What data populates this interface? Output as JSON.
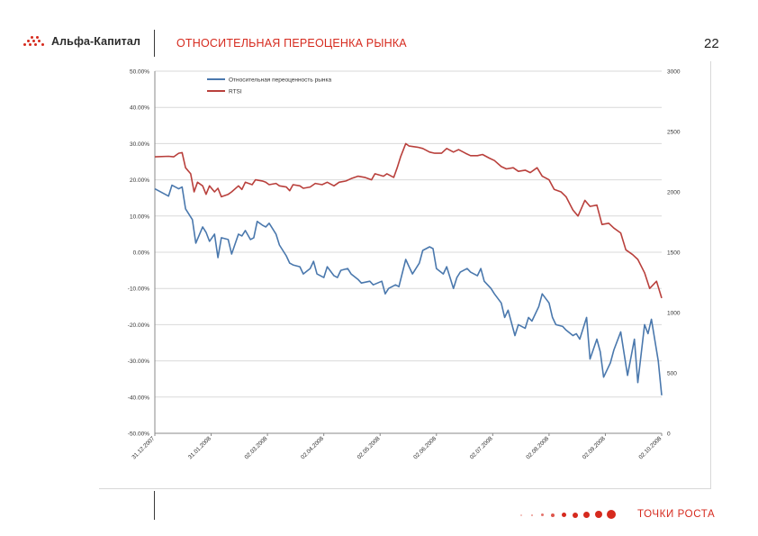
{
  "header": {
    "logo_text": "Альфа-Капитал",
    "title": "ОТНОСИТЕЛЬНАЯ ПЕРЕОЦЕНКА РЫНКА",
    "page_number": "22"
  },
  "footer": {
    "tagline": "ТОЧКИ РОСТА"
  },
  "colors": {
    "brand_red": "#d62a1e",
    "series_blue": "#4a78ad",
    "series_red": "#b9403c"
  },
  "chart_data": {
    "type": "line",
    "title": "",
    "legend_position": "top-center",
    "grid": "horizontal",
    "x_tick_labels": [
      "31.12.2007",
      "31.01.2008",
      "02.03.2008",
      "02.04.2008",
      "02.05.2008",
      "02.06.2008",
      "02.07.2008",
      "02.08.2008",
      "02.09.2008",
      "02.10.2008"
    ],
    "y_left": {
      "ylim": [
        -50,
        50
      ],
      "ticks": [
        50,
        40,
        30,
        20,
        10,
        0,
        -10,
        -20,
        -30,
        -40,
        -50
      ],
      "tick_labels": [
        "50.00%",
        "40.00%",
        "30.00%",
        "20.00%",
        "10.00%",
        "0.00%",
        "-10.00%",
        "-20.00%",
        "-30.00%",
        "-40.00%",
        "-50.00%"
      ]
    },
    "y_right": {
      "ylim": [
        0,
        3000
      ],
      "ticks": [
        3000,
        2500,
        2000,
        1500,
        1000,
        500,
        0
      ],
      "tick_labels": [
        "3000",
        "2500",
        "2000",
        "1500",
        "1000",
        "500",
        "0"
      ]
    },
    "series": [
      {
        "name": "Относительная переоценность рынка",
        "axis": "left",
        "color": "#4a78ad",
        "x": [
          "2007-12-31",
          "2008-01-08",
          "2008-01-10",
          "2008-01-14",
          "2008-01-16",
          "2008-01-18",
          "2008-01-22",
          "2008-01-24",
          "2008-01-28",
          "2008-01-30",
          "2008-02-01",
          "2008-02-04",
          "2008-02-06",
          "2008-02-08",
          "2008-02-12",
          "2008-02-14",
          "2008-02-18",
          "2008-02-20",
          "2008-02-22",
          "2008-02-25",
          "2008-02-27",
          "2008-02-29",
          "2008-03-03",
          "2008-03-05",
          "2008-03-07",
          "2008-03-11",
          "2008-03-13",
          "2008-03-17",
          "2008-03-19",
          "2008-03-21",
          "2008-03-25",
          "2008-03-27",
          "2008-03-31",
          "2008-04-02",
          "2008-04-04",
          "2008-04-08",
          "2008-04-10",
          "2008-04-14",
          "2008-04-16",
          "2008-04-18",
          "2008-04-22",
          "2008-04-24",
          "2008-04-28",
          "2008-04-30",
          "2008-05-05",
          "2008-05-07",
          "2008-05-12",
          "2008-05-14",
          "2008-05-16",
          "2008-05-20",
          "2008-05-22",
          "2008-05-26",
          "2008-05-28",
          "2008-05-30",
          "2008-06-03",
          "2008-06-05",
          "2008-06-09",
          "2008-06-11",
          "2008-06-13",
          "2008-06-17",
          "2008-06-19",
          "2008-06-23",
          "2008-06-25",
          "2008-06-27",
          "2008-07-01",
          "2008-07-03",
          "2008-07-07",
          "2008-07-09",
          "2008-07-11",
          "2008-07-15",
          "2008-07-17",
          "2008-07-21",
          "2008-07-23",
          "2008-07-25",
          "2008-07-29",
          "2008-07-31",
          "2008-08-04",
          "2008-08-06",
          "2008-08-08",
          "2008-08-12",
          "2008-08-14",
          "2008-08-18",
          "2008-08-20",
          "2008-08-22",
          "2008-08-26",
          "2008-08-28",
          "2008-09-01",
          "2008-09-03",
          "2008-09-05",
          "2008-09-09",
          "2008-09-11",
          "2008-09-15",
          "2008-09-17",
          "2008-09-19",
          "2008-09-23",
          "2008-09-25",
          "2008-09-29",
          "2008-10-01",
          "2008-10-03",
          "2008-10-07",
          "2008-10-09",
          "2008-10-13",
          "2008-10-15",
          "2008-10-17",
          "2008-10-21",
          "2008-10-23"
        ],
        "y": [
          17.5,
          15.5,
          18.5,
          17.5,
          18.0,
          12.0,
          9.0,
          2.5,
          7.0,
          5.5,
          3.0,
          5.0,
          -1.5,
          4.0,
          3.5,
          -0.5,
          5.0,
          4.5,
          6.0,
          3.5,
          4.0,
          8.5,
          7.5,
          7.0,
          8.0,
          5.0,
          2.0,
          -1.0,
          -3.0,
          -3.5,
          -4.0,
          -6.0,
          -4.5,
          -2.5,
          -6.0,
          -7.0,
          -4.0,
          -6.5,
          -7.0,
          -5.0,
          -4.5,
          -6.0,
          -7.5,
          -8.5,
          -8.0,
          -9.0,
          -8.0,
          -11.5,
          -10.0,
          -9.0,
          -9.5,
          -2.0,
          -4.0,
          -6.0,
          -3.0,
          0.5,
          1.5,
          1.0,
          -4.5,
          -6.0,
          -4.0,
          -10.0,
          -7.0,
          -5.5,
          -4.5,
          -5.5,
          -6.5,
          -4.5,
          -8.0,
          -10.0,
          -11.5,
          -14.0,
          -18.0,
          -16.0,
          -23.0,
          -20.0,
          -21.0,
          -18.0,
          -19.0,
          -15.0,
          -11.5,
          -14.0,
          -18.0,
          -20.0,
          -20.5,
          -21.5,
          -23.0,
          -22.5,
          -24.0,
          -18.0,
          -29.5,
          -24.0,
          -27.5,
          -34.5,
          -30.5,
          -27.0,
          -22.0,
          -28.0,
          -34.0,
          -24.0,
          -36.0,
          -20.0,
          -22.5,
          -18.5,
          -30.0,
          -39.5
        ]
      },
      {
        "name": "RTSI",
        "axis": "right",
        "color": "#b9403c",
        "x": [
          "2007-12-31",
          "2008-01-08",
          "2008-01-11",
          "2008-01-14",
          "2008-01-16",
          "2008-01-18",
          "2008-01-21",
          "2008-01-23",
          "2008-01-25",
          "2008-01-28",
          "2008-01-30",
          "2008-02-01",
          "2008-02-04",
          "2008-02-06",
          "2008-02-08",
          "2008-02-12",
          "2008-02-14",
          "2008-02-18",
          "2008-02-20",
          "2008-02-22",
          "2008-02-26",
          "2008-02-28",
          "2008-03-03",
          "2008-03-05",
          "2008-03-07",
          "2008-03-11",
          "2008-03-13",
          "2008-03-17",
          "2008-03-19",
          "2008-03-21",
          "2008-03-25",
          "2008-03-27",
          "2008-03-31",
          "2008-04-03",
          "2008-04-07",
          "2008-04-10",
          "2008-04-14",
          "2008-04-17",
          "2008-04-21",
          "2008-04-24",
          "2008-04-28",
          "2008-05-02",
          "2008-05-06",
          "2008-05-08",
          "2008-05-13",
          "2008-05-15",
          "2008-05-19",
          "2008-05-21",
          "2008-05-23",
          "2008-05-26",
          "2008-05-28",
          "2008-06-02",
          "2008-06-05",
          "2008-06-09",
          "2008-06-12",
          "2008-06-16",
          "2008-06-19",
          "2008-06-23",
          "2008-06-26",
          "2008-06-30",
          "2008-07-03",
          "2008-07-07",
          "2008-07-10",
          "2008-07-14",
          "2008-07-17",
          "2008-07-21",
          "2008-07-24",
          "2008-07-28",
          "2008-07-31",
          "2008-08-04",
          "2008-08-07",
          "2008-08-11",
          "2008-08-14",
          "2008-08-18",
          "2008-08-21",
          "2008-08-25",
          "2008-08-28",
          "2008-09-01",
          "2008-09-04",
          "2008-09-08",
          "2008-09-11",
          "2008-09-15",
          "2008-09-18",
          "2008-09-22",
          "2008-09-25",
          "2008-09-29",
          "2008-10-02",
          "2008-10-06",
          "2008-10-09",
          "2008-10-13",
          "2008-10-16",
          "2008-10-20",
          "2008-10-23"
        ],
        "y": [
          2290,
          2295,
          2290,
          2320,
          2325,
          2200,
          2150,
          2000,
          2080,
          2050,
          1980,
          2050,
          2000,
          2030,
          1960,
          1980,
          2000,
          2050,
          2020,
          2080,
          2060,
          2100,
          2090,
          2080,
          2060,
          2070,
          2050,
          2040,
          2010,
          2060,
          2050,
          2030,
          2040,
          2070,
          2060,
          2080,
          2050,
          2080,
          2090,
          2110,
          2130,
          2120,
          2100,
          2150,
          2130,
          2150,
          2120,
          2200,
          2290,
          2400,
          2380,
          2370,
          2360,
          2330,
          2320,
          2320,
          2360,
          2330,
          2350,
          2320,
          2300,
          2300,
          2310,
          2280,
          2260,
          2210,
          2190,
          2200,
          2170,
          2180,
          2160,
          2200,
          2130,
          2100,
          2020,
          2000,
          1960,
          1850,
          1800,
          1930,
          1880,
          1890,
          1730,
          1740,
          1700,
          1660,
          1520,
          1480,
          1440,
          1330,
          1200,
          1260,
          1120
        ]
      }
    ]
  }
}
